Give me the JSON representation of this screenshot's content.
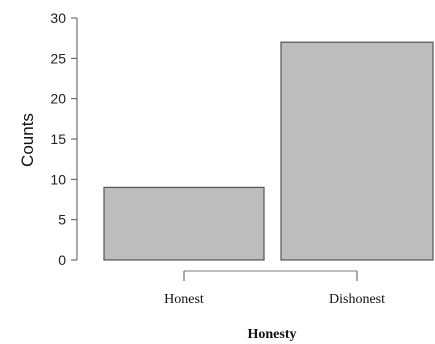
{
  "chart_data": {
    "type": "bar",
    "categories": [
      "Honest",
      "Dishonest"
    ],
    "values": [
      9,
      27
    ],
    "xlabel": "Honesty",
    "ylabel": "Counts",
    "ylim": [
      0,
      30
    ],
    "yticks": [
      0,
      5,
      10,
      15,
      20,
      25,
      30
    ],
    "grid": false,
    "legend": "none",
    "colors": {
      "bar_fill": "#bdbdbd",
      "bar_stroke": "#555555",
      "axis": "#555555",
      "bracket": "#aaaaaa"
    }
  }
}
